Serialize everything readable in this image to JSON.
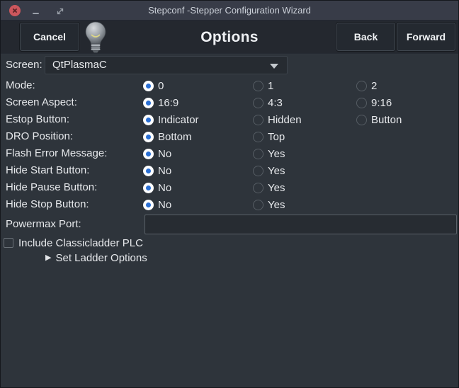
{
  "window": {
    "title": "Stepconf -Stepper Configuration Wizard"
  },
  "header": {
    "cancel_label": "Cancel",
    "title": "Options",
    "back_label": "Back",
    "forward_label": "Forward"
  },
  "form": {
    "screen": {
      "label": "Screen:",
      "value": "QtPlasmaC"
    },
    "radio_rows": [
      {
        "label": "Mode:",
        "options": [
          {
            "label": "0",
            "selected": true
          },
          {
            "label": "1",
            "selected": false
          },
          {
            "label": "2",
            "selected": false
          }
        ]
      },
      {
        "label": "Screen Aspect:",
        "options": [
          {
            "label": "16:9",
            "selected": true
          },
          {
            "label": "4:3",
            "selected": false
          },
          {
            "label": "9:16",
            "selected": false
          }
        ]
      },
      {
        "label": "Estop Button:",
        "options": [
          {
            "label": "Indicator",
            "selected": true
          },
          {
            "label": "Hidden",
            "selected": false
          },
          {
            "label": "Button",
            "selected": false
          }
        ]
      },
      {
        "label": "DRO Position:",
        "options": [
          {
            "label": "Bottom",
            "selected": true
          },
          {
            "label": "Top",
            "selected": false
          }
        ]
      },
      {
        "label": "Flash Error Message:",
        "options": [
          {
            "label": "No",
            "selected": true
          },
          {
            "label": "Yes",
            "selected": false
          }
        ]
      },
      {
        "label": "Hide Start Button:",
        "options": [
          {
            "label": "No",
            "selected": true
          },
          {
            "label": "Yes",
            "selected": false
          }
        ]
      },
      {
        "label": "Hide Pause Button:",
        "options": [
          {
            "label": "No",
            "selected": true
          },
          {
            "label": "Yes",
            "selected": false
          }
        ]
      },
      {
        "label": "Hide Stop Button:",
        "options": [
          {
            "label": "No",
            "selected": true
          },
          {
            "label": "Yes",
            "selected": false
          }
        ]
      }
    ],
    "powermax": {
      "label": "Powermax Port:",
      "value": ""
    },
    "classicladder": {
      "label": "Include Classicladder PLC",
      "checked": false
    },
    "ladder_expander": {
      "label": "Set Ladder Options",
      "expanded": false
    }
  },
  "icons": {
    "expander_glyph": "▶",
    "names": [
      "close-icon",
      "minimize-icon",
      "maximize-icon",
      "lightbulb-icon",
      "chevron-down-icon",
      "triangle-right-icon"
    ]
  },
  "colors": {
    "accent_blue": "#2a6fd4",
    "close_red": "#cc575d",
    "titlebar": "#383c48",
    "header_band": "#24282f",
    "form_background": "#2e343b"
  }
}
